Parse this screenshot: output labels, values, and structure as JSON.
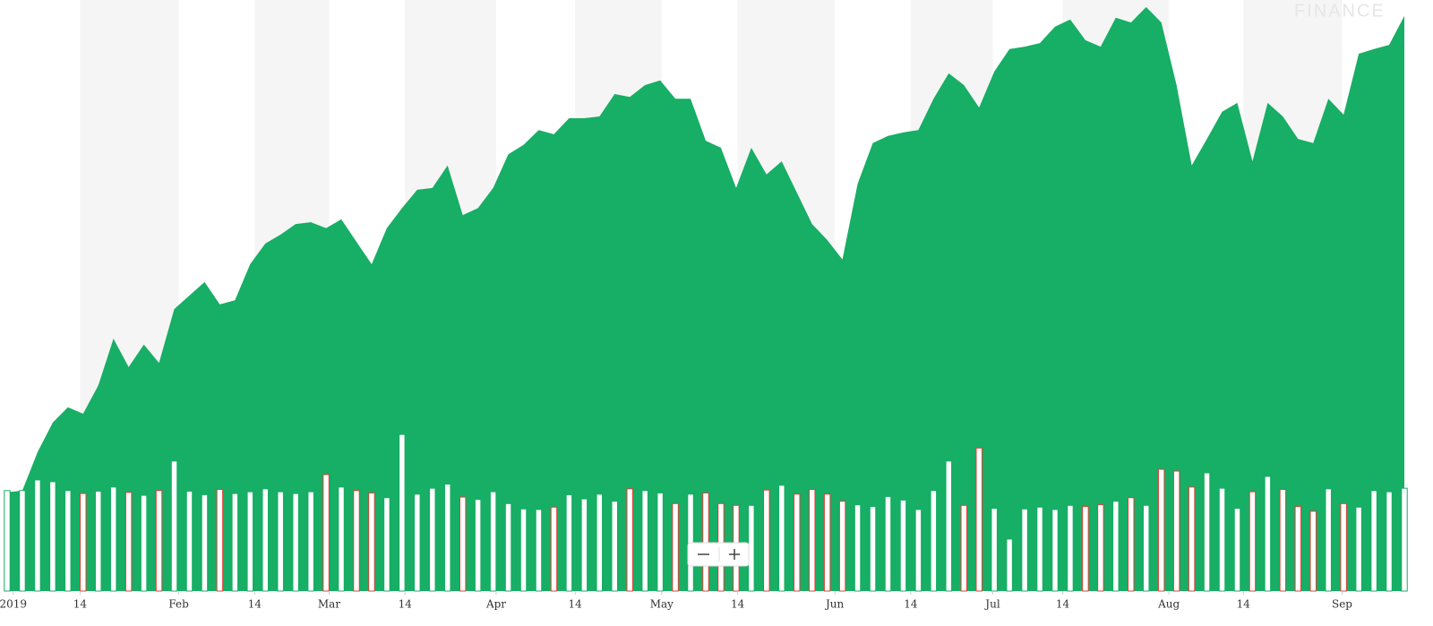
{
  "chart_data": {
    "type": "area",
    "watermark": "FINANCE",
    "values": [
      16.7,
      17.0,
      23.5,
      28.5,
      31.1,
      30.0,
      34.8,
      42.7,
      37.9,
      41.7,
      38.6,
      47.7,
      50.0,
      52.3,
      48.5,
      49.2,
      55.3,
      58.8,
      60.3,
      62.1,
      62.4,
      61.4,
      62.9,
      59.1,
      55.3,
      61.4,
      64.8,
      67.9,
      68.2,
      72.0,
      63.6,
      64.8,
      68.2,
      73.9,
      75.5,
      78.0,
      77.3,
      80.0,
      80.0,
      80.3,
      84.1,
      83.6,
      85.6,
      86.4,
      83.3,
      83.3,
      76.2,
      75.0,
      68.2,
      75.0,
      70.5,
      72.7,
      67.4,
      62.1,
      59.4,
      56.1,
      68.9,
      75.8,
      77.0,
      77.6,
      78.0,
      83.3,
      87.6,
      85.6,
      81.8,
      87.9,
      91.7,
      92.1,
      92.7,
      95.5,
      96.7,
      93.2,
      92.1,
      97.0,
      96.2,
      98.8,
      96.2,
      85.6,
      72.0,
      76.5,
      81.1,
      82.6,
      72.7,
      82.6,
      80.3,
      76.5,
      75.8,
      83.3,
      80.6,
      90.9,
      91.7,
      92.4,
      97.3
    ],
    "volume": [
      17.0,
      17.0,
      18.8,
      18.5,
      17.0,
      16.5,
      16.9,
      17.6,
      16.7,
      16.2,
      17.0,
      22.0,
      16.9,
      16.3,
      17.2,
      16.5,
      16.8,
      17.3,
      16.8,
      16.5,
      16.8,
      19.7,
      17.6,
      17.0,
      16.6,
      15.8,
      26.5,
      16.4,
      17.4,
      18.1,
      15.9,
      15.5,
      16.8,
      14.8,
      13.9,
      13.8,
      14.2,
      16.3,
      15.6,
      16.4,
      15.2,
      17.3,
      17.0,
      16.6,
      14.8,
      16.4,
      16.6,
      14.8,
      14.5,
      14.5,
      17.1,
      17.9,
      16.4,
      17.2,
      16.4,
      15.2,
      14.6,
      14.3,
      16.0,
      15.4,
      13.8,
      17.0,
      22.0,
      14.5,
      24.2,
      14.0,
      8.8,
      13.9,
      14.2,
      13.8,
      14.5,
      14.3,
      14.6,
      15.2,
      15.8,
      14.5,
      20.6,
      20.3,
      17.6,
      20.0,
      17.4,
      14.0,
      16.8,
      19.4,
      17.2,
      14.3,
      13.5,
      17.3,
      14.8,
      14.2,
      17.0,
      16.8,
      17.4
    ],
    "color": "#17ae65",
    "up_color": "#17ae65",
    "down_color": "#e0413a",
    "xlim": [
      0,
      92
    ],
    "ylim": [
      0,
      100
    ],
    "stripes": true,
    "xticks": [
      {
        "value": 0.4,
        "label": "2019"
      },
      {
        "value": 4.8,
        "label": "14"
      },
      {
        "value": 11.3,
        "label": "Feb"
      },
      {
        "value": 16.3,
        "label": "14"
      },
      {
        "value": 21.2,
        "label": "Mar"
      },
      {
        "value": 26.2,
        "label": "14"
      },
      {
        "value": 32.2,
        "label": "Apr"
      },
      {
        "value": 37.4,
        "label": "14"
      },
      {
        "value": 43.1,
        "label": "May"
      },
      {
        "value": 48.1,
        "label": "14"
      },
      {
        "value": 54.5,
        "label": "Jun"
      },
      {
        "value": 59.5,
        "label": "14"
      },
      {
        "value": 64.9,
        "label": "Jul"
      },
      {
        "value": 69.5,
        "label": "14"
      },
      {
        "value": 76.5,
        "label": "Aug"
      },
      {
        "value": 81.4,
        "label": "14"
      },
      {
        "value": 87.9,
        "label": "Sep"
      }
    ]
  }
}
